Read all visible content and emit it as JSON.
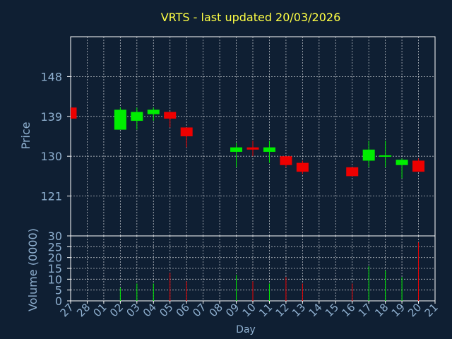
{
  "chart_data": [
    {
      "type": "candlestick",
      "title": "VRTS - last updated 20/03/2026",
      "xlabel": "Day",
      "ylabel": "Price",
      "ylim": [
        112,
        157
      ],
      "yticks": [
        121,
        130,
        139,
        148
      ],
      "x_tick_labels": [
        "27",
        "28",
        "01",
        "02",
        "03",
        "04",
        "05",
        "06",
        "07",
        "08",
        "09",
        "10",
        "11",
        "12",
        "13",
        "14",
        "15",
        "16",
        "17",
        "18",
        "19",
        "20",
        "21"
      ],
      "grid": true,
      "candles": [
        {
          "x": "27",
          "open": 141.0,
          "high": 141.0,
          "low": 138.5,
          "close": 138.5
        },
        {
          "x": "02",
          "open": 136.0,
          "high": 141.0,
          "low": 136.0,
          "close": 140.5
        },
        {
          "x": "03",
          "open": 138.0,
          "high": 141.0,
          "low": 136.0,
          "close": 140.0
        },
        {
          "x": "04",
          "open": 139.5,
          "high": 141.0,
          "low": 138.0,
          "close": 140.5
        },
        {
          "x": "05",
          "open": 140.0,
          "high": 140.0,
          "low": 136.5,
          "close": 138.5
        },
        {
          "x": "06",
          "open": 136.5,
          "high": 136.5,
          "low": 132.0,
          "close": 134.5
        },
        {
          "x": "09",
          "open": 131.0,
          "high": 133.0,
          "low": 127.5,
          "close": 132.0
        },
        {
          "x": "10",
          "open": 132.0,
          "high": 133.5,
          "low": 130.0,
          "close": 131.5
        },
        {
          "x": "11",
          "open": 131.0,
          "high": 133.5,
          "low": 128.5,
          "close": 132.0
        },
        {
          "x": "12",
          "open": 130.0,
          "high": 130.0,
          "low": 127.5,
          "close": 128.0
        },
        {
          "x": "13",
          "open": 128.5,
          "high": 129.0,
          "low": 126.0,
          "close": 126.5
        },
        {
          "x": "16",
          "open": 127.5,
          "high": 127.5,
          "low": 125.5,
          "close": 125.5
        },
        {
          "x": "17",
          "open": 129.0,
          "high": 133.5,
          "low": 127.5,
          "close": 131.5
        },
        {
          "x": "18",
          "open": 130.0,
          "high": 133.5,
          "low": 127.5,
          "close": 130.2
        },
        {
          "x": "19",
          "open": 128.0,
          "high": 129.5,
          "low": 125.0,
          "close": 129.2
        },
        {
          "x": "20",
          "open": 129.0,
          "high": 129.5,
          "low": 126.5,
          "close": 126.5
        }
      ]
    },
    {
      "type": "bar",
      "ylabel": "Volume (0000)",
      "ylim": [
        0,
        30
      ],
      "yticks": [
        0,
        5,
        10,
        15,
        20,
        25,
        30
      ],
      "grid": true,
      "bars": [
        {
          "x": "02",
          "value": 6
        },
        {
          "x": "03",
          "value": 8
        },
        {
          "x": "04",
          "value": 8
        },
        {
          "x": "05",
          "value": 13
        },
        {
          "x": "06",
          "value": 9
        },
        {
          "x": "09",
          "value": 12
        },
        {
          "x": "10",
          "value": 9
        },
        {
          "x": "11",
          "value": 8
        },
        {
          "x": "12",
          "value": 11
        },
        {
          "x": "13",
          "value": 8
        },
        {
          "x": "16",
          "value": 8
        },
        {
          "x": "17",
          "value": 16
        },
        {
          "x": "18",
          "value": 14
        },
        {
          "x": "19",
          "value": 11
        },
        {
          "x": "20",
          "value": 27
        }
      ]
    }
  ],
  "colors": {
    "background": "#0f1f33",
    "axis": "#ffffff",
    "grid": "#ffffff",
    "text": "#8fb0d0",
    "title": "#ffff44",
    "up": "#00ee00",
    "down": "#ee0000"
  }
}
